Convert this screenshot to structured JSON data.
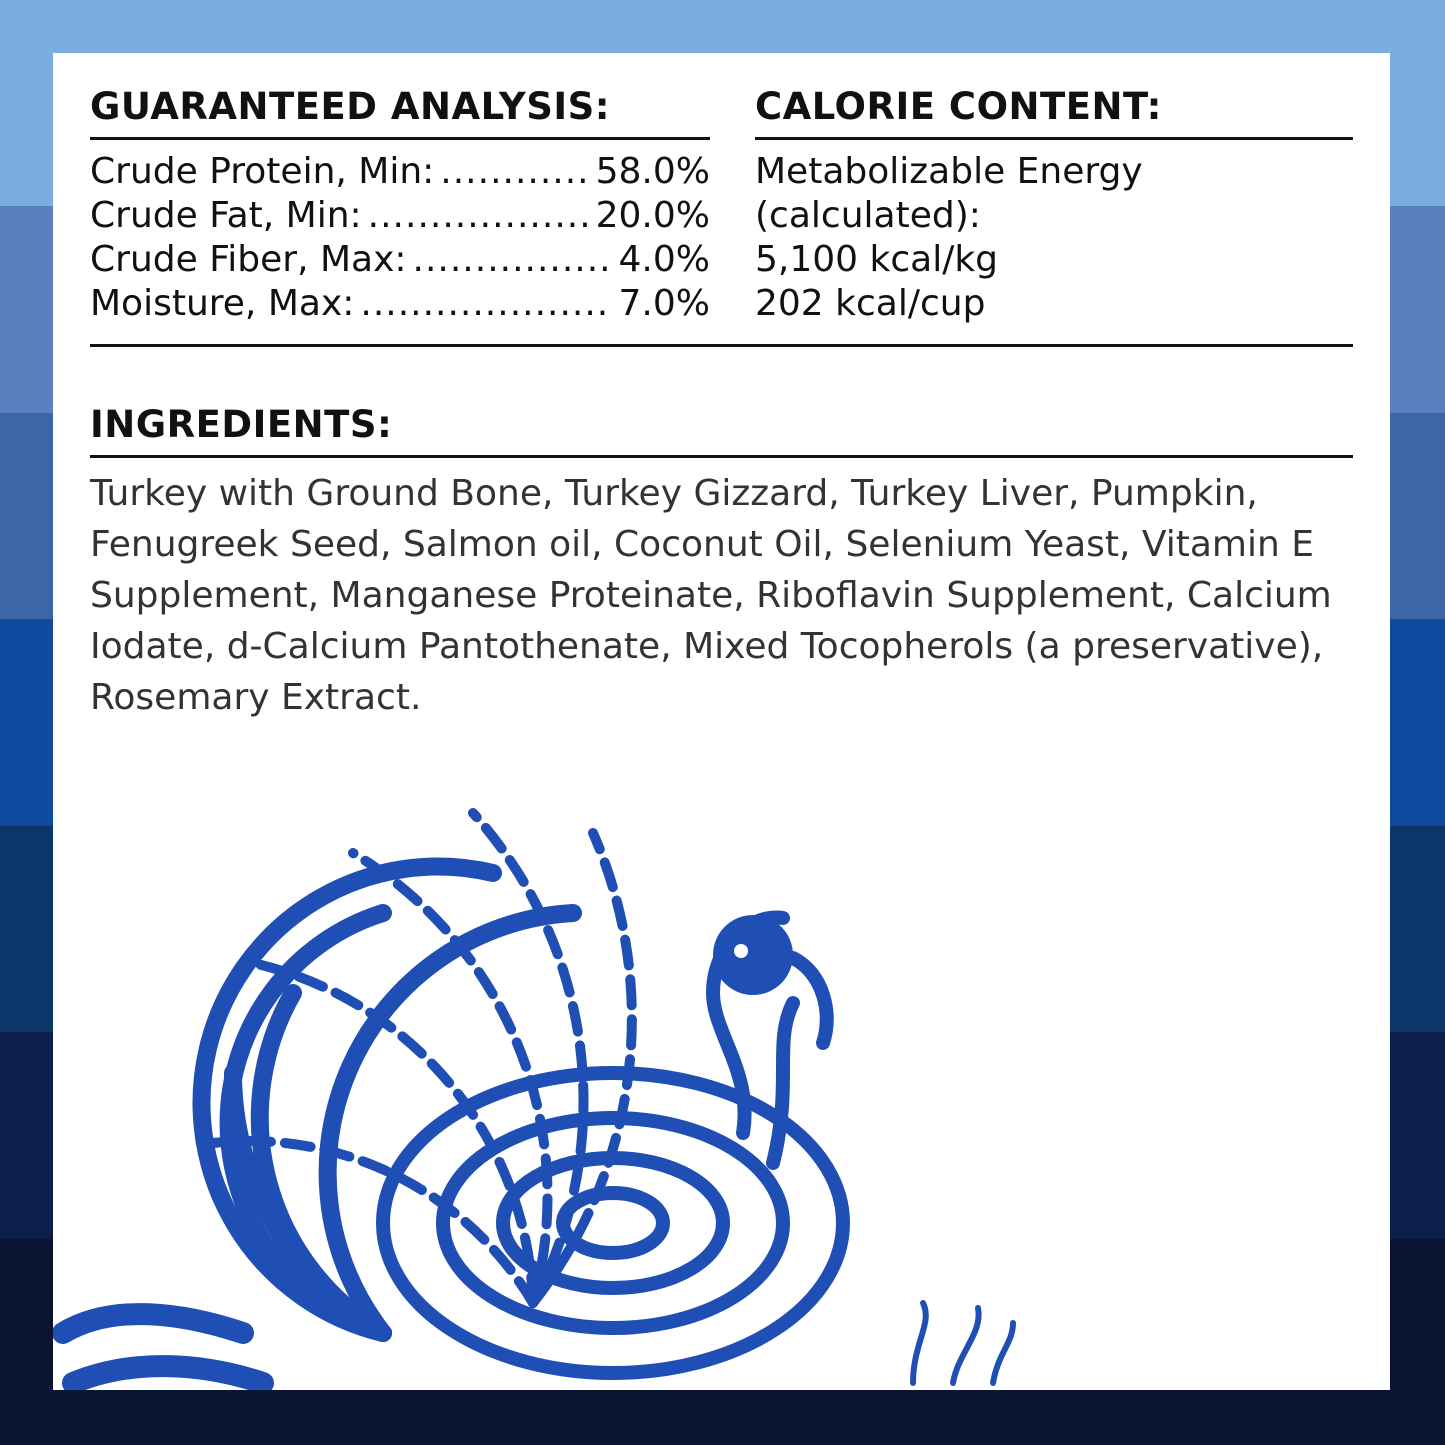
{
  "background_bands": [
    "#7aaee0",
    "#5a80bf",
    "#3b67a9",
    "#0f4a9e",
    "#0c3569",
    "#0d1e4a",
    "#0a1534"
  ],
  "illustration_color": "#1f4fb5",
  "guaranteed_analysis": {
    "title": "GUARANTEED ANALYSIS:",
    "rows": [
      {
        "label": "Crude Protein, Min:",
        "value": "58.0%"
      },
      {
        "label": "Crude Fat, Min:",
        "value": "20.0%"
      },
      {
        "label": "Crude Fiber, Max:",
        "value": "4.0%"
      },
      {
        "label": "Moisture, Max:",
        "value": "7.0%"
      }
    ]
  },
  "calorie_content": {
    "title": "CALORIE CONTENT:",
    "lines": [
      "Metabolizable Energy",
      "(calculated):",
      "5,100 kcal/kg",
      "202 kcal/cup"
    ]
  },
  "ingredients": {
    "title": "INGREDIENTS:",
    "text": "Turkey with Ground Bone, Turkey Gizzard, Turkey Liver, Pumpkin, Fenugreek Seed, Salmon oil, Coconut Oil, Selenium Yeast, Vitamin E Supplement, Manganese Proteinate, Riboflavin Supplement, Calcium Iodate, d-Calcium Pantothenate, Mixed Tocopherols (a preservative), Rosemary Extract."
  },
  "illustration": "turkey-illustration"
}
